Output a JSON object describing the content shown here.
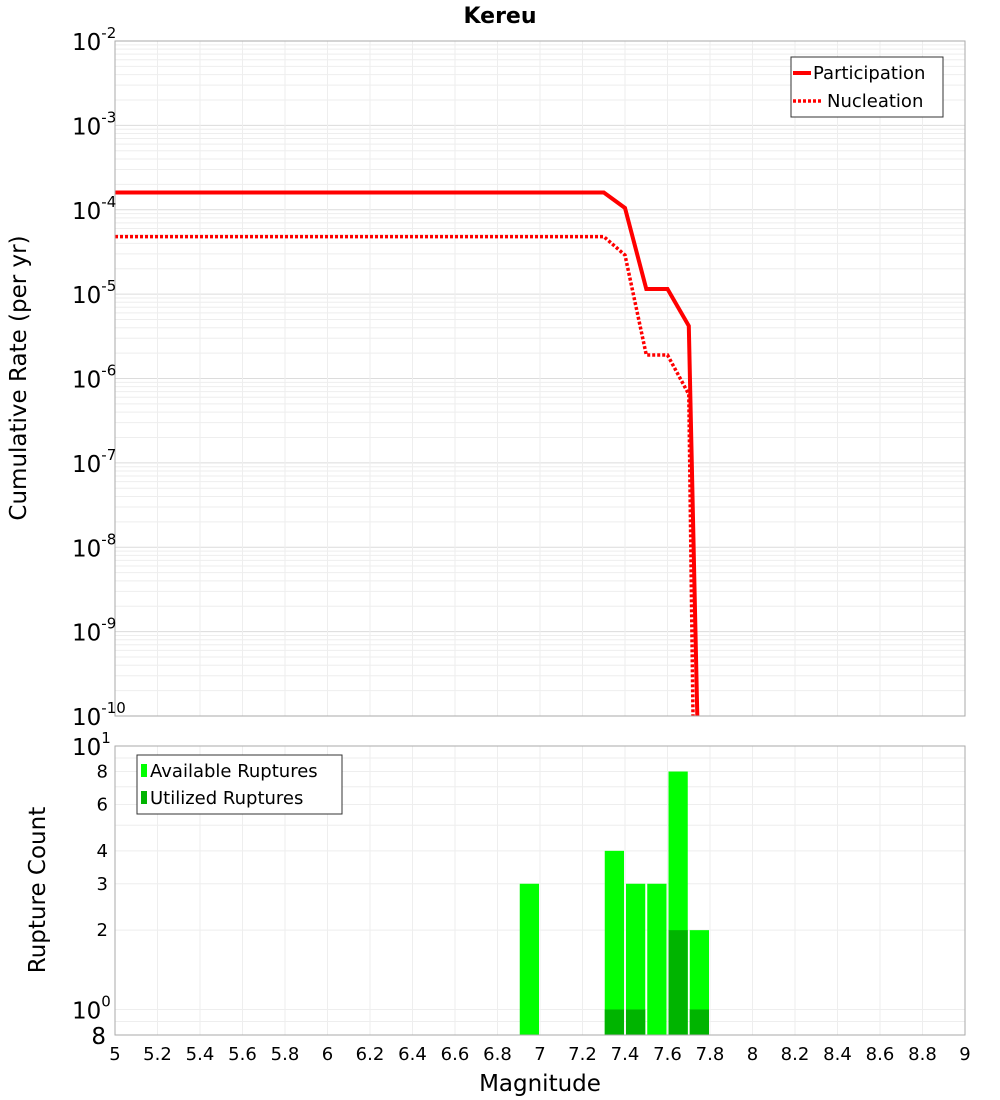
{
  "title": "Kereu",
  "chart_data": [
    {
      "type": "line",
      "title": "Kereu",
      "ylabel": "Cumulative Rate (per yr)",
      "y_scale": "log",
      "ylim": [
        1e-10,
        0.01
      ],
      "xlim": [
        5,
        9
      ],
      "grid": true,
      "legend_position": "top-right",
      "y_tick_labels": [
        {
          "base": "10",
          "exp": "-2"
        },
        {
          "base": "10",
          "exp": "-3"
        },
        {
          "base": "10",
          "exp": "-4"
        },
        {
          "base": "10",
          "exp": "-5"
        },
        {
          "base": "10",
          "exp": "-6"
        },
        {
          "base": "10",
          "exp": "-7"
        },
        {
          "base": "10",
          "exp": "-8"
        },
        {
          "base": "10",
          "exp": "-9"
        },
        {
          "base": "10",
          "exp": "-10"
        }
      ],
      "series": [
        {
          "name": "Participation",
          "style": "solid",
          "color": "#ff0000",
          "x": [
            5.0,
            7.3,
            7.4,
            7.5,
            7.6,
            7.7,
            7.74
          ],
          "y": [
            0.00016,
            0.00016,
            0.000105,
            1.15e-05,
            1.15e-05,
            4.2e-06,
            1e-10
          ]
        },
        {
          "name": "Nucleation",
          "style": "dotted",
          "color": "#ff0000",
          "x": [
            5.0,
            7.3,
            7.4,
            7.5,
            7.6,
            7.7,
            7.72
          ],
          "y": [
            4.8e-05,
            4.8e-05,
            2.9e-05,
            1.9e-06,
            1.9e-06,
            6.5e-07,
            1e-10
          ]
        }
      ]
    },
    {
      "type": "bar",
      "ylabel": "Rupture Count",
      "xlabel": "Magnitude",
      "y_scale": "log",
      "ylim": [
        0.8,
        10
      ],
      "xlim": [
        5,
        9
      ],
      "grid": true,
      "legend_position": "top-left",
      "bar_width": 0.1,
      "y_tick_labels": {
        "decades": [
          {
            "value": 10,
            "base": "10",
            "exp": "1"
          },
          {
            "value": 1,
            "base": "10",
            "exp": "0"
          }
        ],
        "minor": [
          {
            "value": 8,
            "label": "8"
          },
          {
            "value": 6,
            "label": "6"
          },
          {
            "value": 4,
            "label": "4"
          },
          {
            "value": 3,
            "label": "3"
          },
          {
            "value": 2,
            "label": "2"
          },
          {
            "value": 0.8,
            "label": "8"
          }
        ]
      },
      "x_ticks": [
        "5",
        "5.2",
        "5.4",
        "5.6",
        "5.8",
        "6",
        "6.2",
        "6.4",
        "6.6",
        "6.8",
        "7",
        "7.2",
        "7.4",
        "7.6",
        "7.8",
        "8",
        "8.2",
        "8.4",
        "8.6",
        "8.8",
        "9"
      ],
      "categories": [
        6.95,
        7.35,
        7.45,
        7.55,
        7.65,
        7.75
      ],
      "series": [
        {
          "name": "Available Ruptures",
          "color": "#00ff00",
          "values": [
            3,
            4,
            3,
            3,
            8,
            2
          ]
        },
        {
          "name": "Utilized Ruptures",
          "color": "#00b400",
          "values": [
            0,
            1,
            1,
            0,
            2,
            1
          ]
        }
      ]
    }
  ]
}
